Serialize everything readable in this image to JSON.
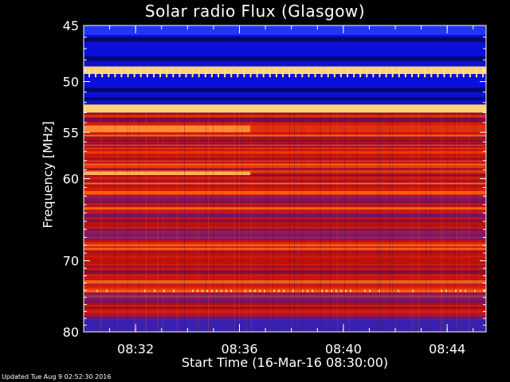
{
  "chart_data": {
    "type": "heatmap",
    "title": "Solar radio Flux (Glasgow)",
    "ylabel": "Frequency [MHz]",
    "xlabel": "Start Time (16-Mar-16 08:30:00)",
    "ylim": [
      45,
      80
    ],
    "y_ticks": [
      45,
      50,
      55,
      60,
      70,
      80
    ],
    "y_tick_labels": [
      "45",
      "50",
      "55",
      "60",
      "70",
      "80"
    ],
    "y_scale": "log",
    "xlim_minutes": [
      8.5,
      8.75
    ],
    "x_ticks": [
      "08:32",
      "08:36",
      "08:40",
      "08:44"
    ],
    "x_tick_hours": [
      8.5333,
      8.6,
      8.6667,
      8.7333
    ],
    "x_start_hour": 8.5,
    "x_end_hour": 8.7583,
    "bands": [
      {
        "from": 45,
        "to": 48.6,
        "level": "blue"
      },
      {
        "from": 48.6,
        "to": 49.3,
        "level": "bright"
      },
      {
        "from": 49.3,
        "to": 52.2,
        "level": "blue"
      },
      {
        "from": 52.2,
        "to": 53.0,
        "level": "bright"
      },
      {
        "from": 53.0,
        "to": 80,
        "level": "red"
      }
    ],
    "colors": {
      "blue": "#0a10d8",
      "dark_blue": "#05066a",
      "red": "#c8140a",
      "orange": "#ff6a1a",
      "yellow": "#ffd27a"
    }
  },
  "footer": {
    "updated": "Updated Tue Aug  9 02:52:30 2016"
  }
}
